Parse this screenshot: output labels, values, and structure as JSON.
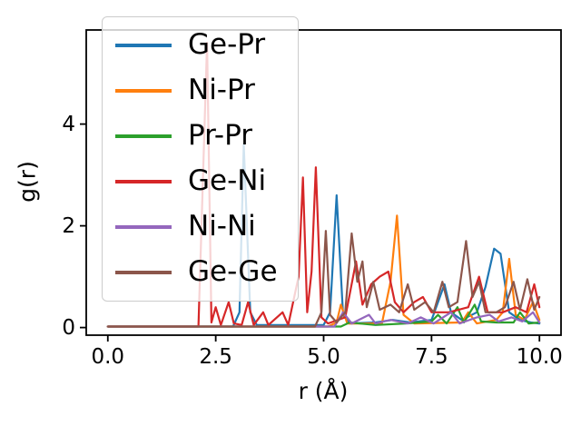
{
  "figure": {
    "background": "#ffffff",
    "xlabel": "r (Å)",
    "ylabel": "g(r)"
  },
  "chart_data": {
    "type": "line",
    "title": "",
    "xlabel": "r (Å)",
    "ylabel": "g(r)",
    "xlim": [
      -0.5,
      10.5
    ],
    "ylim": [
      -0.15,
      5.85
    ],
    "grid": false,
    "legend_position": "upper left",
    "legend_framealpha": 0.8,
    "xticks": {
      "values": [
        0.0,
        2.5,
        5.0,
        7.5,
        10.0
      ],
      "labels": [
        "0.0",
        "2.5",
        "5.0",
        "7.5",
        "10.0"
      ]
    },
    "yticks": {
      "values": [
        0,
        2,
        4
      ],
      "labels": [
        "0",
        "2",
        "4"
      ]
    },
    "series": [
      {
        "name": "Ge-Pr",
        "color": "#1f77b4",
        "points": [
          [
            0,
            0.02
          ],
          [
            2.9,
            0.02
          ],
          [
            3.05,
            0.3
          ],
          [
            3.15,
            3.6
          ],
          [
            3.3,
            0.3
          ],
          [
            3.45,
            0.05
          ],
          [
            5.0,
            0.05
          ],
          [
            5.15,
            0.3
          ],
          [
            5.3,
            2.6
          ],
          [
            5.45,
            0.25
          ],
          [
            5.6,
            0.08
          ],
          [
            6.2,
            0.1
          ],
          [
            6.6,
            0.15
          ],
          [
            7.0,
            0.1
          ],
          [
            7.5,
            0.15
          ],
          [
            7.8,
            0.85
          ],
          [
            7.95,
            0.3
          ],
          [
            8.2,
            0.15
          ],
          [
            8.55,
            0.3
          ],
          [
            8.75,
            0.8
          ],
          [
            8.95,
            1.55
          ],
          [
            9.1,
            1.45
          ],
          [
            9.3,
            0.3
          ],
          [
            9.55,
            0.15
          ],
          [
            9.8,
            0.1
          ],
          [
            10,
            0.08
          ]
        ]
      },
      {
        "name": "Ni-Pr",
        "color": "#ff7f0e",
        "points": [
          [
            0,
            0.02
          ],
          [
            5.1,
            0.02
          ],
          [
            5.3,
            0.1
          ],
          [
            5.4,
            0.45
          ],
          [
            5.55,
            0.08
          ],
          [
            6.35,
            0.08
          ],
          [
            6.55,
            0.9
          ],
          [
            6.7,
            2.2
          ],
          [
            6.85,
            0.25
          ],
          [
            7.1,
            0.08
          ],
          [
            8.2,
            0.1
          ],
          [
            8.35,
            0.3
          ],
          [
            8.55,
            0.08
          ],
          [
            9.0,
            0.15
          ],
          [
            9.15,
            0.3
          ],
          [
            9.3,
            1.35
          ],
          [
            9.45,
            0.25
          ],
          [
            9.65,
            0.15
          ],
          [
            9.85,
            0.5
          ],
          [
            10,
            0.15
          ]
        ]
      },
      {
        "name": "Pr-Pr",
        "color": "#2ca02c",
        "points": [
          [
            0,
            0.02
          ],
          [
            5.4,
            0.02
          ],
          [
            5.6,
            0.1
          ],
          [
            6.2,
            0.05
          ],
          [
            6.9,
            0.08
          ],
          [
            7.5,
            0.12
          ],
          [
            7.65,
            0.25
          ],
          [
            7.85,
            0.08
          ],
          [
            8.1,
            0.4
          ],
          [
            8.25,
            0.1
          ],
          [
            8.5,
            0.45
          ],
          [
            8.65,
            0.12
          ],
          [
            9.0,
            0.1
          ],
          [
            9.4,
            0.1
          ],
          [
            9.55,
            0.3
          ],
          [
            9.75,
            0.08
          ],
          [
            10,
            0.1
          ]
        ]
      },
      {
        "name": "Ge-Ni",
        "color": "#d62728",
        "points": [
          [
            0,
            0.02
          ],
          [
            2.1,
            0.02
          ],
          [
            2.3,
            5.6
          ],
          [
            2.4,
            0.1
          ],
          [
            2.5,
            0.4
          ],
          [
            2.62,
            0.05
          ],
          [
            2.8,
            0.5
          ],
          [
            2.92,
            0.08
          ],
          [
            3.1,
            0.05
          ],
          [
            3.25,
            0.5
          ],
          [
            3.38,
            0.05
          ],
          [
            3.6,
            0.3
          ],
          [
            3.72,
            0.05
          ],
          [
            4.05,
            0.3
          ],
          [
            4.18,
            0.05
          ],
          [
            4.42,
            1.0
          ],
          [
            4.52,
            2.95
          ],
          [
            4.62,
            0.3
          ],
          [
            4.72,
            1.1
          ],
          [
            4.82,
            3.15
          ],
          [
            4.95,
            0.2
          ],
          [
            5.1,
            0.08
          ],
          [
            5.5,
            0.2
          ],
          [
            5.75,
            1.3
          ],
          [
            5.9,
            0.45
          ],
          [
            6.1,
            0.85
          ],
          [
            6.3,
            1.0
          ],
          [
            6.5,
            1.1
          ],
          [
            6.65,
            0.5
          ],
          [
            6.85,
            0.3
          ],
          [
            7.1,
            0.5
          ],
          [
            7.3,
            0.6
          ],
          [
            7.5,
            0.3
          ],
          [
            7.9,
            0.3
          ],
          [
            8.35,
            0.4
          ],
          [
            8.6,
            1.0
          ],
          [
            8.8,
            0.3
          ],
          [
            9.15,
            0.3
          ],
          [
            9.45,
            0.4
          ],
          [
            9.7,
            0.3
          ],
          [
            9.88,
            0.85
          ],
          [
            10,
            0.4
          ]
        ]
      },
      {
        "name": "Ni-Ni",
        "color": "#9467bd",
        "points": [
          [
            0,
            0.02
          ],
          [
            5.25,
            0.02
          ],
          [
            5.45,
            0.3
          ],
          [
            5.65,
            0.08
          ],
          [
            6.05,
            0.25
          ],
          [
            6.2,
            0.08
          ],
          [
            6.55,
            0.15
          ],
          [
            6.95,
            0.08
          ],
          [
            7.25,
            0.2
          ],
          [
            7.55,
            0.08
          ],
          [
            7.95,
            0.3
          ],
          [
            8.15,
            0.08
          ],
          [
            8.55,
            0.2
          ],
          [
            8.85,
            0.25
          ],
          [
            9.05,
            0.12
          ],
          [
            9.35,
            0.2
          ],
          [
            9.6,
            0.12
          ],
          [
            9.85,
            0.3
          ],
          [
            10,
            0.1
          ]
        ]
      },
      {
        "name": "Ge-Ge",
        "color": "#8c564b",
        "points": [
          [
            0,
            0.02
          ],
          [
            4.8,
            0.02
          ],
          [
            4.95,
            0.3
          ],
          [
            5.05,
            1.9
          ],
          [
            5.15,
            0.25
          ],
          [
            5.3,
            0.1
          ],
          [
            5.5,
            0.3
          ],
          [
            5.65,
            1.85
          ],
          [
            5.78,
            0.9
          ],
          [
            5.9,
            1.3
          ],
          [
            6.0,
            0.4
          ],
          [
            6.15,
            0.9
          ],
          [
            6.3,
            0.35
          ],
          [
            6.55,
            0.45
          ],
          [
            6.75,
            0.3
          ],
          [
            6.95,
            0.85
          ],
          [
            7.1,
            0.35
          ],
          [
            7.35,
            0.5
          ],
          [
            7.55,
            0.3
          ],
          [
            7.75,
            0.9
          ],
          [
            7.9,
            0.4
          ],
          [
            8.1,
            0.5
          ],
          [
            8.3,
            1.7
          ],
          [
            8.45,
            0.6
          ],
          [
            8.6,
            0.9
          ],
          [
            8.75,
            0.3
          ],
          [
            9.0,
            0.3
          ],
          [
            9.2,
            0.4
          ],
          [
            9.4,
            0.9
          ],
          [
            9.55,
            0.35
          ],
          [
            9.72,
            0.95
          ],
          [
            9.88,
            0.35
          ],
          [
            10,
            0.6
          ]
        ]
      }
    ]
  }
}
